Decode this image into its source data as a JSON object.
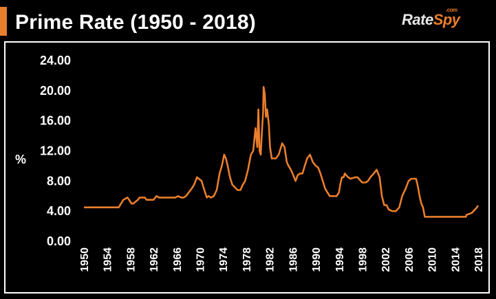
{
  "colors": {
    "accent": "#e97e2c",
    "background": "#000000",
    "text": "#ffffff",
    "line": "#e97e2c"
  },
  "logo": {
    "part1": "Rate",
    "part2": "Spy",
    "suffix": ".com"
  },
  "chart_data": {
    "type": "line",
    "title": "Prime Rate (1950 - 2018)",
    "xlabel": "",
    "ylabel": "%",
    "xlim": [
      1950,
      2018
    ],
    "ylim": [
      0,
      24
    ],
    "grid": false,
    "legend": "none",
    "yticks": [
      "0.00",
      "4.00",
      "8.00",
      "12.00",
      "16.00",
      "20.00",
      "24.00"
    ],
    "xticks": [
      "1950",
      "1954",
      "1958",
      "1962",
      "1966",
      "1970",
      "1974",
      "1978",
      "1982",
      "1986",
      "1990",
      "1994",
      "1998",
      "2002",
      "2006",
      "2010",
      "2014",
      "2018"
    ],
    "series": [
      {
        "x": [
          1950.0,
          1956.0,
          1956.4,
          1956.8,
          1957.5,
          1957.8,
          1958.2,
          1958.5,
          1959.3,
          1959.6,
          1960.5,
          1960.8,
          1962.0,
          1962.5,
          1963.0,
          1965.8,
          1966.2,
          1966.8,
          1967.2,
          1967.6,
          1968.1,
          1968.6,
          1969.0,
          1969.5,
          1970.3,
          1970.6,
          1970.9,
          1971.2,
          1971.5,
          1971.9,
          1972.4,
          1972.9,
          1973.4,
          1973.8,
          1974.2,
          1974.5,
          1974.8,
          1975.2,
          1975.6,
          1976.0,
          1976.5,
          1977.0,
          1977.4,
          1977.8,
          1978.3,
          1978.8,
          1979.2,
          1979.6,
          1979.9,
          1980.1,
          1980.3,
          1980.5,
          1980.7,
          1980.9,
          1981.0,
          1981.2,
          1981.4,
          1981.6,
          1981.9,
          1982.1,
          1982.4,
          1982.7,
          1983.1,
          1983.6,
          1984.2,
          1984.6,
          1985.0,
          1985.3,
          1985.7,
          1986.1,
          1986.5,
          1986.9,
          1987.3,
          1987.7,
          1988.1,
          1988.5,
          1989.0,
          1989.5,
          1990.0,
          1990.4,
          1990.8,
          1991.2,
          1991.6,
          1992.0,
          1992.4,
          1992.8,
          1993.2,
          1993.6,
          1994.0,
          1994.2,
          1994.5,
          1994.8,
          1995.0,
          1995.2,
          1995.6,
          1996.0,
          1996.8,
          1997.2,
          1998.0,
          1998.6,
          1999.0,
          1999.4,
          2000.0,
          2000.5,
          2001.0,
          2001.4,
          2001.8,
          2002.2,
          2002.6,
          2003.2,
          2003.8,
          2004.4,
          2004.9,
          2005.5,
          2006.0,
          2006.5,
          2007.3,
          2007.6,
          2007.9,
          2008.2,
          2008.5,
          2008.8,
          2009.0,
          2009.5,
          2010.0,
          2015.9,
          2016.0,
          2016.9,
          2017.2,
          2017.5,
          2017.8,
          2018.0
        ],
        "y": [
          4.5,
          4.5,
          5.0,
          5.5,
          5.8,
          5.5,
          5.0,
          5.0,
          5.5,
          5.8,
          5.8,
          5.5,
          5.5,
          6.0,
          5.8,
          5.8,
          6.0,
          5.8,
          5.8,
          6.0,
          6.5,
          7.0,
          7.5,
          8.5,
          8.0,
          7.2,
          6.5,
          5.8,
          6.0,
          5.8,
          6.0,
          6.8,
          9.0,
          10.0,
          11.5,
          11.0,
          10.0,
          8.5,
          7.5,
          7.2,
          6.8,
          6.8,
          7.5,
          8.0,
          9.5,
          11.5,
          12.0,
          15.0,
          12.5,
          17.5,
          12.0,
          11.5,
          14.5,
          17.0,
          20.5,
          19.5,
          16.5,
          17.5,
          15.5,
          12.5,
          11.0,
          11.0,
          11.0,
          11.5,
          13.0,
          12.5,
          10.5,
          10.0,
          9.5,
          8.8,
          8.0,
          8.8,
          9.0,
          9.0,
          10.0,
          11.0,
          11.5,
          10.5,
          10.0,
          9.8,
          9.0,
          8.0,
          7.0,
          6.5,
          6.0,
          6.0,
          6.0,
          6.0,
          6.5,
          7.5,
          8.5,
          8.5,
          9.0,
          8.8,
          8.5,
          8.3,
          8.5,
          8.5,
          7.8,
          7.8,
          8.0,
          8.5,
          9.0,
          9.5,
          8.5,
          6.0,
          4.8,
          4.8,
          4.2,
          4.0,
          4.0,
          4.5,
          6.0,
          7.0,
          8.0,
          8.3,
          8.3,
          7.3,
          6.0,
          5.0,
          4.5,
          3.25,
          3.25,
          3.25,
          3.25,
          3.25,
          3.5,
          3.75,
          4.0,
          4.25,
          4.5,
          4.75
        ]
      }
    ]
  }
}
